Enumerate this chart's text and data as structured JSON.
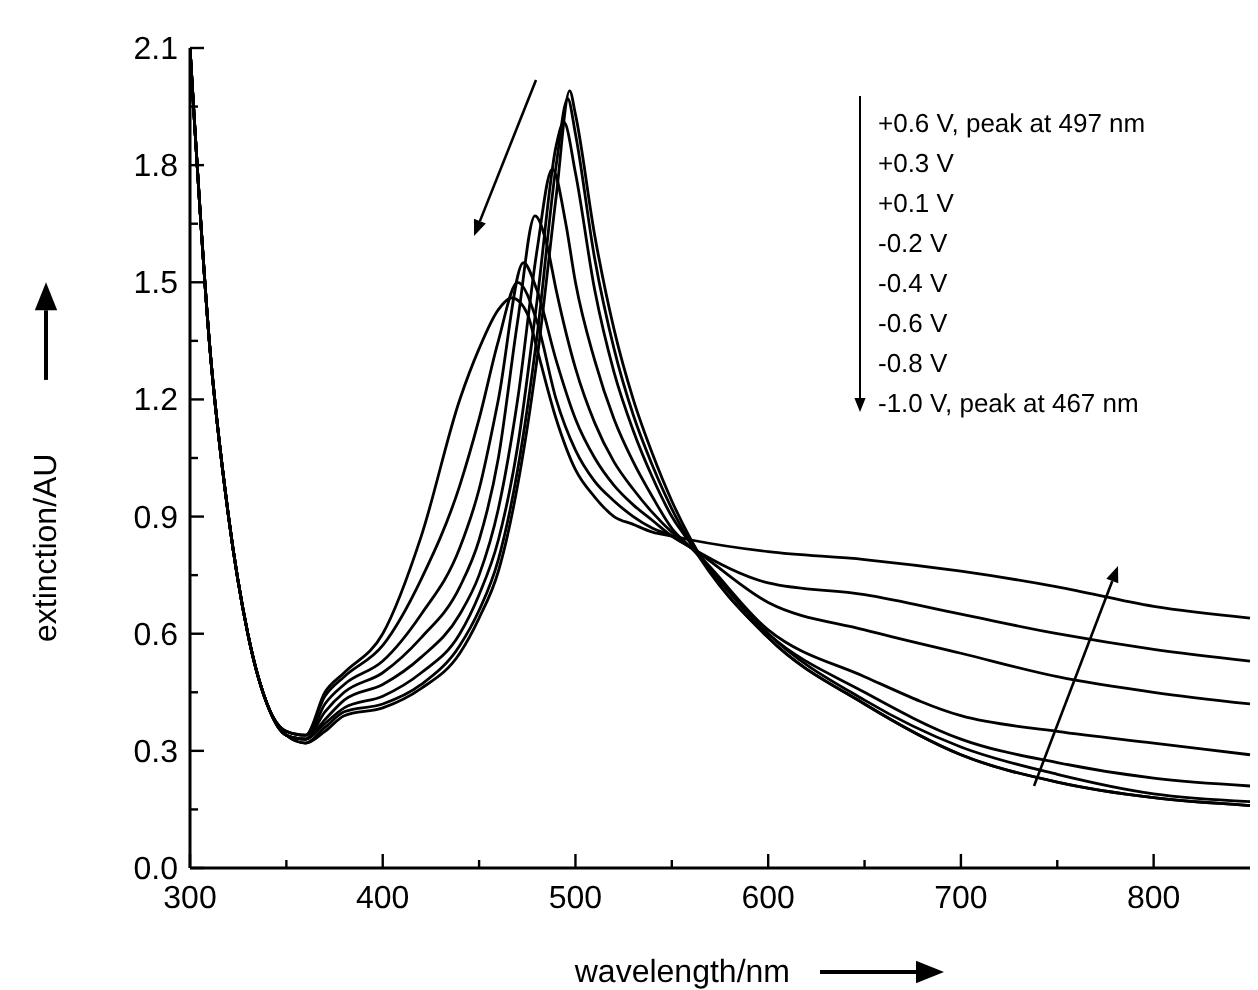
{
  "chart_data": {
    "type": "line",
    "xlabel": "wavelength/nm",
    "ylabel": "extinction/AU",
    "xlim": [
      300,
      850
    ],
    "xticks": [
      300,
      {
        "value": 350,
        "label": null
      },
      400,
      {
        "value": 450,
        "label": null
      },
      500,
      {
        "value": 550,
        "label": null
      },
      600,
      {
        "value": 650,
        "label": null
      },
      700,
      {
        "value": 750,
        "label": null
      },
      800
    ],
    "ylim": [
      0,
      2.1
    ],
    "yticks": [
      {
        "value": 0,
        "label": "0.0"
      },
      {
        "value": 0.15,
        "label": null
      },
      0.3,
      {
        "value": 0.45,
        "label": null
      },
      0.6,
      {
        "value": 0.75,
        "label": null
      },
      0.9,
      {
        "value": 1.05,
        "label": null
      },
      1.2,
      {
        "value": 1.35,
        "label": null
      },
      1.5,
      {
        "value": 1.65,
        "label": null
      },
      1.8,
      {
        "value": 1.95,
        "label": null
      },
      2.1
    ],
    "grid": false,
    "line_style": "solid",
    "annotations": [
      "+0.6 V, peak at 497 nm",
      "+0.3 V",
      "+0.1 V",
      "-0.2 V",
      "-0.4 V",
      "-0.6 V",
      "-0.8 V",
      "-1.0 V, peak at 467 nm"
    ],
    "series": [
      {
        "color": "#000000",
        "x": [
          300,
          310,
          320,
          330,
          340,
          350,
          360,
          370,
          380,
          400,
          420,
          440,
          450,
          460,
          470,
          480,
          490,
          497,
          500,
          510,
          520,
          530,
          540,
          550,
          560,
          600,
          650,
          700,
          750,
          800,
          850
        ],
        "values": [
          2.1,
          1.35,
          0.9,
          0.6,
          0.42,
          0.34,
          0.32,
          0.35,
          0.39,
          0.41,
          0.46,
          0.55,
          0.64,
          0.76,
          0.98,
          1.3,
          1.72,
          1.99,
          1.93,
          1.62,
          1.38,
          1.2,
          1.06,
          0.94,
          0.84,
          0.59,
          0.42,
          0.29,
          0.22,
          0.18,
          0.16
        ]
      },
      {
        "color": "#000000",
        "x": [
          300,
          310,
          320,
          330,
          340,
          350,
          360,
          370,
          380,
          400,
          420,
          440,
          450,
          460,
          470,
          480,
          490,
          496,
          500,
          510,
          520,
          530,
          540,
          550,
          560,
          600,
          650,
          700,
          750,
          800,
          850
        ],
        "values": [
          2.1,
          1.35,
          0.9,
          0.6,
          0.42,
          0.34,
          0.32,
          0.36,
          0.4,
          0.42,
          0.47,
          0.57,
          0.66,
          0.79,
          1.02,
          1.36,
          1.8,
          1.97,
          1.88,
          1.56,
          1.33,
          1.16,
          1.03,
          0.92,
          0.83,
          0.59,
          0.42,
          0.29,
          0.22,
          0.18,
          0.16
        ]
      },
      {
        "color": "#000000",
        "x": [
          300,
          310,
          320,
          330,
          340,
          350,
          360,
          370,
          380,
          400,
          420,
          440,
          450,
          460,
          470,
          480,
          490,
          494,
          500,
          510,
          520,
          530,
          540,
          550,
          560,
          600,
          650,
          700,
          750,
          800,
          850
        ],
        "values": [
          2.1,
          1.35,
          0.9,
          0.6,
          0.42,
          0.34,
          0.33,
          0.37,
          0.41,
          0.44,
          0.5,
          0.6,
          0.7,
          0.84,
          1.08,
          1.45,
          1.85,
          1.91,
          1.78,
          1.48,
          1.27,
          1.12,
          1.0,
          0.9,
          0.83,
          0.6,
          0.43,
          0.31,
          0.24,
          0.19,
          0.17
        ]
      },
      {
        "color": "#000000",
        "x": [
          300,
          310,
          320,
          330,
          340,
          350,
          360,
          370,
          380,
          400,
          420,
          440,
          450,
          460,
          470,
          480,
          488,
          495,
          500,
          510,
          520,
          530,
          540,
          550,
          560,
          600,
          650,
          700,
          750,
          800,
          850
        ],
        "values": [
          2.1,
          1.35,
          0.9,
          0.6,
          0.42,
          0.34,
          0.33,
          0.38,
          0.43,
          0.47,
          0.54,
          0.65,
          0.75,
          0.92,
          1.2,
          1.58,
          1.79,
          1.65,
          1.5,
          1.3,
          1.15,
          1.04,
          0.95,
          0.87,
          0.82,
          0.6,
          0.45,
          0.33,
          0.27,
          0.23,
          0.21
        ]
      },
      {
        "color": "#000000",
        "x": [
          300,
          310,
          320,
          330,
          340,
          350,
          360,
          370,
          380,
          400,
          420,
          440,
          450,
          460,
          470,
          479,
          485,
          490,
          500,
          510,
          520,
          530,
          540,
          550,
          560,
          600,
          650,
          700,
          750,
          800,
          850
        ],
        "values": [
          2.1,
          1.35,
          0.9,
          0.6,
          0.42,
          0.34,
          0.33,
          0.4,
          0.45,
          0.5,
          0.59,
          0.72,
          0.84,
          1.05,
          1.4,
          1.67,
          1.6,
          1.48,
          1.28,
          1.14,
          1.04,
          0.97,
          0.91,
          0.86,
          0.82,
          0.61,
          0.49,
          0.39,
          0.35,
          0.32,
          0.29
        ]
      },
      {
        "color": "#000000",
        "x": [
          300,
          310,
          320,
          330,
          340,
          350,
          360,
          370,
          380,
          400,
          420,
          440,
          450,
          460,
          473,
          480,
          490,
          500,
          510,
          520,
          530,
          540,
          550,
          560,
          600,
          650,
          700,
          750,
          800,
          850
        ],
        "values": [
          2.1,
          1.35,
          0.9,
          0.6,
          0.42,
          0.34,
          0.33,
          0.42,
          0.47,
          0.53,
          0.65,
          0.82,
          0.97,
          1.2,
          1.55,
          1.48,
          1.3,
          1.15,
          1.05,
          0.98,
          0.93,
          0.89,
          0.85,
          0.82,
          0.68,
          0.61,
          0.55,
          0.49,
          0.45,
          0.42
        ]
      },
      {
        "color": "#000000",
        "x": [
          300,
          310,
          320,
          330,
          340,
          350,
          360,
          370,
          380,
          400,
          420,
          440,
          450,
          460,
          470,
          480,
          490,
          500,
          510,
          520,
          530,
          540,
          550,
          560,
          600,
          650,
          700,
          750,
          800,
          850
        ],
        "values": [
          2.1,
          1.35,
          0.9,
          0.6,
          0.42,
          0.35,
          0.34,
          0.44,
          0.49,
          0.57,
          0.74,
          0.98,
          1.15,
          1.35,
          1.5,
          1.4,
          1.2,
          1.07,
          0.99,
          0.94,
          0.9,
          0.87,
          0.85,
          0.82,
          0.73,
          0.7,
          0.65,
          0.6,
          0.56,
          0.53
        ]
      },
      {
        "color": "#000000",
        "x": [
          300,
          310,
          320,
          330,
          340,
          350,
          360,
          370,
          380,
          400,
          420,
          440,
          450,
          460,
          467,
          475,
          480,
          490,
          500,
          510,
          520,
          530,
          540,
          550,
          560,
          600,
          650,
          700,
          750,
          800,
          850
        ],
        "values": [
          2.1,
          1.35,
          0.9,
          0.6,
          0.42,
          0.35,
          0.34,
          0.45,
          0.5,
          0.6,
          0.85,
          1.2,
          1.33,
          1.43,
          1.46,
          1.42,
          1.33,
          1.15,
          1.02,
          0.95,
          0.9,
          0.88,
          0.86,
          0.85,
          0.84,
          0.81,
          0.79,
          0.76,
          0.72,
          0.67,
          0.64
        ]
      }
    ]
  }
}
